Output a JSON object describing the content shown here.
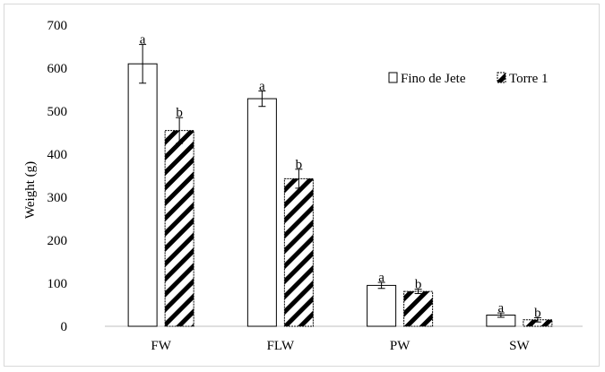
{
  "chart_data": {
    "type": "bar",
    "title": "",
    "xlabel": "",
    "ylabel": "Weight (g)",
    "ylim": [
      0,
      700
    ],
    "yticks": [
      0,
      100,
      200,
      300,
      400,
      500,
      600,
      700
    ],
    "grid": false,
    "legend_position": "top-right",
    "categories": [
      "FW",
      "FLW",
      "PW",
      "SW"
    ],
    "series": [
      {
        "name": "Fino de Jete",
        "pattern": "solid-white",
        "values": [
          610,
          529,
          95,
          26
        ],
        "errors": [
          45,
          18,
          7,
          5
        ],
        "labels": [
          "a",
          "a",
          "a",
          "a"
        ]
      },
      {
        "name": "Torre 1",
        "pattern": "diagonal-hatch",
        "values": [
          455,
          343,
          81,
          15
        ],
        "errors": [
          30,
          22,
          5,
          5
        ],
        "labels": [
          "b",
          "b",
          "b",
          "b"
        ]
      }
    ],
    "colors": {
      "bar_edge": "#000000",
      "hatch": "#000000",
      "bar_fill": "#ffffff"
    }
  }
}
